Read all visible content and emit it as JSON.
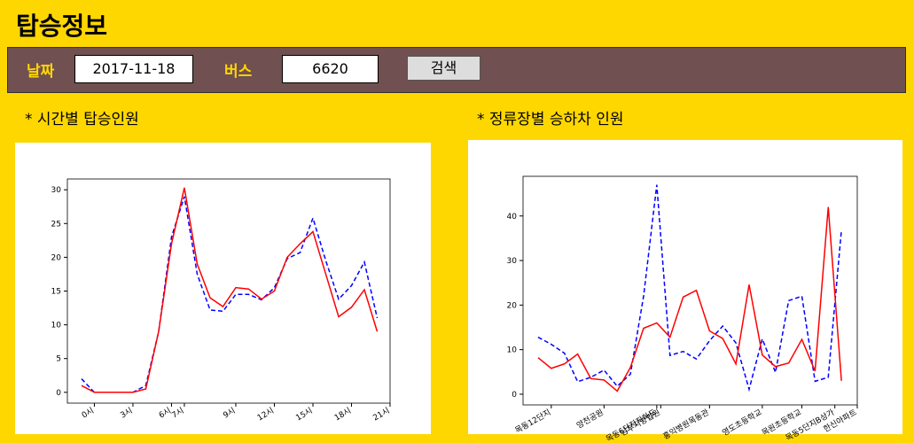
{
  "header": {
    "title": "탑승정보"
  },
  "form": {
    "date_label": "날짜",
    "date": "2017-11-18",
    "bus_label": "버스",
    "bus": "6620",
    "button": "검색"
  },
  "chart_data": [
    {
      "type": "line",
      "title": "* 시간별 탑승인원",
      "x": [
        0,
        1,
        2,
        3,
        4,
        5,
        6,
        7,
        8,
        9,
        10,
        11,
        12,
        13,
        14,
        15,
        16,
        17,
        18,
        19,
        20,
        21,
        22,
        23
      ],
      "xlim": [
        -1.1,
        24.0
      ],
      "xticks": [
        {
          "value": 1,
          "label": "0시"
        },
        {
          "value": 4,
          "label": "3시"
        },
        {
          "value": 7,
          "label": "6시"
        },
        {
          "value": 8,
          "label": "7시"
        },
        {
          "value": 12,
          "label": "9시"
        },
        {
          "value": 15,
          "label": "12시"
        },
        {
          "value": 18,
          "label": "15시"
        },
        {
          "value": 21,
          "label": "18시"
        },
        {
          "value": 24,
          "label": "21시"
        }
      ],
      "ylim": [
        -1.6,
        31.6
      ],
      "yticks": [
        0,
        5,
        10,
        15,
        20,
        25,
        30
      ],
      "series": [
        {
          "color": "#0000ff",
          "linestyle": "dashed",
          "values": [
            2,
            0,
            0,
            0,
            0,
            1,
            9,
            23,
            29,
            17.5,
            12.2,
            12,
            14.5,
            14.5,
            13.7,
            15.5,
            19.8,
            20.7,
            25.8,
            19.5,
            13.8,
            15.8,
            19.3,
            11
          ]
        },
        {
          "color": "#ff0000",
          "linestyle": "solid",
          "values": [
            1,
            0,
            0,
            0,
            0,
            0.5,
            9,
            22,
            30.3,
            19,
            14,
            12.7,
            15.5,
            15.3,
            13.8,
            15,
            20,
            22,
            23.8,
            17.5,
            11.2,
            12.6,
            15.2,
            9
          ]
        }
      ]
    },
    {
      "type": "line",
      "title": "* 정류장별 승하차 인원",
      "x": [
        0,
        1,
        2,
        3,
        4,
        5,
        6,
        7,
        8,
        9,
        10,
        11,
        12,
        13,
        14,
        15,
        16,
        17,
        18,
        19,
        20,
        21,
        22,
        23
      ],
      "xlim": [
        -1.14,
        24.2
      ],
      "xticks": [
        {
          "value": 1,
          "label": "목동12단지"
        },
        {
          "value": 5,
          "label": "양천공원"
        },
        {
          "value": 9,
          "label": "목동6단지지하도"
        },
        {
          "value": 9.3,
          "label": "남부지방법원"
        },
        {
          "value": 13,
          "label": "홍익병원목동관"
        },
        {
          "value": 17,
          "label": "영도초등학교"
        },
        {
          "value": 20,
          "label": "목원초등학교"
        },
        {
          "value": 22.5,
          "label": "목동5단지B상가"
        },
        {
          "value": 24.2,
          "label": "한신아파트"
        }
      ],
      "ylim": [
        -2.4,
        48.9
      ],
      "yticks": [
        0,
        10,
        20,
        30,
        40
      ],
      "series": [
        {
          "color": "#0000ff",
          "linestyle": "dashed",
          "values": [
            12.8,
            11.2,
            9.2,
            2.8,
            3.8,
            5.4,
            1.8,
            4.5,
            22,
            47,
            8.7,
            9.6,
            7.9,
            12,
            15.3,
            11.5,
            1.1,
            12.4,
            4.9,
            21,
            22,
            2.9,
            3.8,
            36.8
          ]
        },
        {
          "color": "#ff0000",
          "linestyle": "solid",
          "values": [
            8.2,
            5.8,
            6.8,
            9,
            3.5,
            3.2,
            0.7,
            6,
            14.8,
            16,
            12.8,
            21.8,
            23.3,
            14.2,
            12.5,
            6.8,
            24.6,
            8.8,
            6.2,
            7,
            12.3,
            5.2,
            42,
            3
          ]
        }
      ]
    }
  ]
}
